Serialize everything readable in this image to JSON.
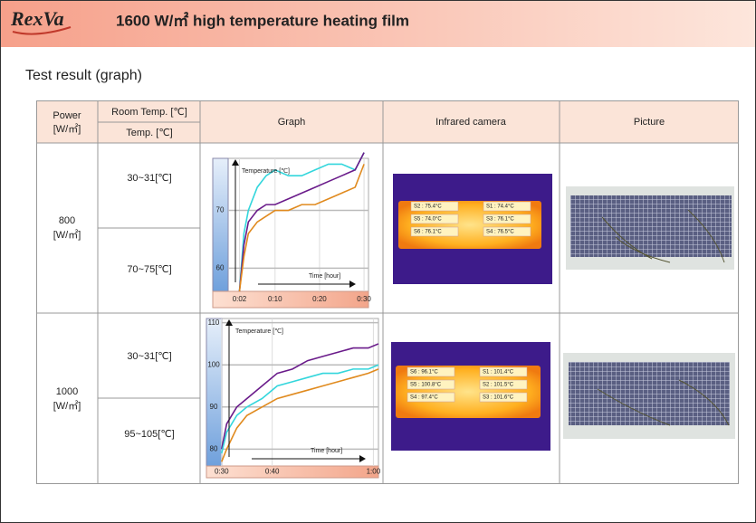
{
  "header": {
    "logo": "RexVa",
    "title": "1600 W/㎡ high temperature heating film"
  },
  "subtitle": "Test result (graph)",
  "table": {
    "headers": {
      "power": "Power",
      "power_unit": "[W/㎡]",
      "room_temp": "Room Temp. [℃]",
      "temp": "Temp. [℃]",
      "graph": "Graph",
      "infrared": "Infrared camera",
      "picture": "Picture"
    },
    "rows": [
      {
        "power": "800",
        "power_unit": "[W/㎡]",
        "room_temp": "30~31[℃]",
        "temp": "70~75[℃]",
        "infrared_labels": [
          "S2 : 75.4°C",
          "S1 : 74.4°C",
          "S5 : 74.0°C",
          "S3 : 76.1°C",
          "S6 : 76.1°C",
          "S4 : 76.5°C"
        ]
      },
      {
        "power": "1000",
        "power_unit": "[W/㎡]",
        "room_temp": "30~31[℃]",
        "temp": "95~105[℃]",
        "infrared_labels": [
          "S6 : 96.1°C",
          "S1 : 101.4°C",
          "S5 : 100.8°C",
          "S2 : 101.5°C",
          "S4 : 97.4°C",
          "S3 : 101.6°C"
        ]
      }
    ]
  },
  "chart_data": [
    {
      "type": "line",
      "y_label": "Temperature [℃]",
      "x_label": "Time [hour]",
      "x": [
        2,
        3,
        4,
        6,
        8,
        10,
        13,
        16,
        19,
        22,
        25,
        28,
        30
      ],
      "xlim": [
        -4,
        31
      ],
      "xticks": [
        {
          "value": 2,
          "label": "0:02"
        },
        {
          "value": 10,
          "label": "0:10"
        },
        {
          "value": 20,
          "label": "0:20"
        },
        {
          "value": 30,
          "label": "0:30"
        }
      ],
      "ylim": [
        56,
        79
      ],
      "yticks": [
        60,
        70
      ],
      "series": [
        {
          "color": "#33d6dc",
          "values": [
            56,
            66,
            70,
            74,
            76,
            77,
            76,
            76,
            77,
            78,
            78,
            77,
            80
          ]
        },
        {
          "color": "#6a1b8a",
          "values": [
            56,
            64,
            68,
            70,
            71,
            71,
            72,
            73,
            74,
            75,
            76,
            77,
            80
          ]
        },
        {
          "color": "#e08a1e",
          "values": [
            56,
            62,
            66,
            68,
            69,
            70,
            70,
            71,
            71,
            72,
            73,
            74,
            78
          ]
        }
      ]
    },
    {
      "type": "line",
      "y_label": "Temperature [℃]",
      "x_label": "Time [hour]",
      "x": [
        30,
        31,
        33,
        35,
        38,
        41,
        44,
        47,
        50,
        53,
        56,
        59,
        61
      ],
      "xlim": [
        27,
        61
      ],
      "xticks": [
        {
          "value": 30,
          "label": "0:30"
        },
        {
          "value": 40,
          "label": "0:40"
        },
        {
          "value": 60,
          "label": "1:00"
        }
      ],
      "ylim": [
        76,
        111
      ],
      "yticks": [
        80,
        90,
        100,
        110
      ],
      "series": [
        {
          "color": "#6a1b8a",
          "values": [
            80,
            86,
            90,
            92,
            95,
            98,
            99,
            101,
            102,
            103,
            104,
            104,
            105
          ]
        },
        {
          "color": "#33d6dc",
          "values": [
            79,
            84,
            88,
            90,
            92,
            95,
            96,
            97,
            98,
            98,
            99,
            99,
            100
          ]
        },
        {
          "color": "#e08a1e",
          "values": [
            77,
            80,
            85,
            88,
            90,
            92,
            93,
            94,
            95,
            96,
            97,
            98,
            99
          ]
        }
      ]
    }
  ]
}
